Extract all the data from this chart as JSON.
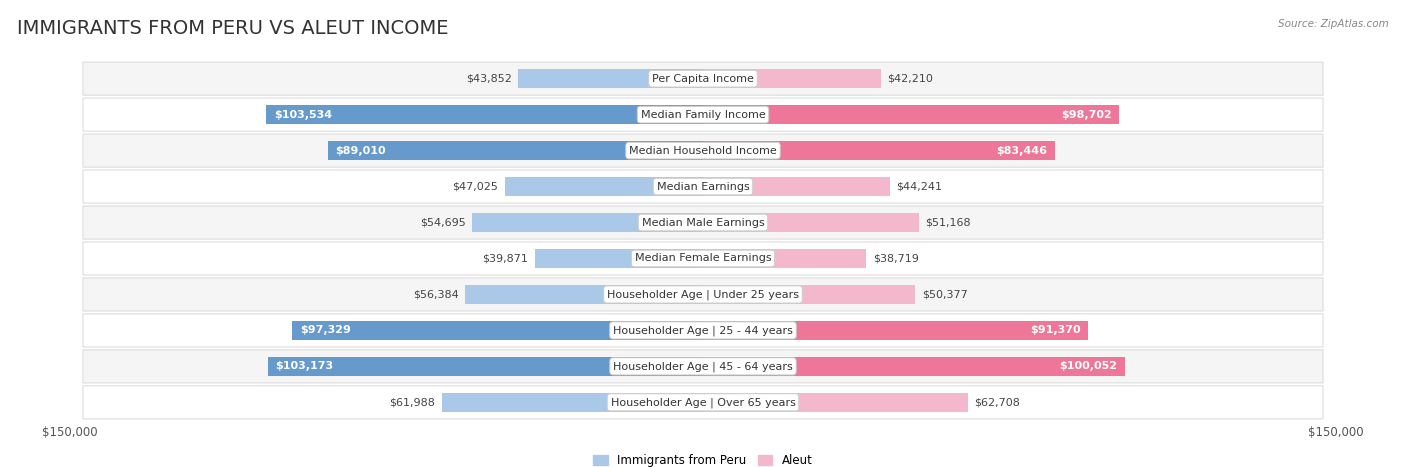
{
  "title": "IMMIGRANTS FROM PERU VS ALEUT INCOME",
  "source": "Source: ZipAtlas.com",
  "categories": [
    "Per Capita Income",
    "Median Family Income",
    "Median Household Income",
    "Median Earnings",
    "Median Male Earnings",
    "Median Female Earnings",
    "Householder Age | Under 25 years",
    "Householder Age | 25 - 44 years",
    "Householder Age | 45 - 64 years",
    "Householder Age | Over 65 years"
  ],
  "peru_values": [
    43852,
    103534,
    89010,
    47025,
    54695,
    39871,
    56384,
    97329,
    103173,
    61988
  ],
  "aleut_values": [
    42210,
    98702,
    83446,
    44241,
    51168,
    38719,
    50377,
    91370,
    100052,
    62708
  ],
  "peru_labels": [
    "$43,852",
    "$103,534",
    "$89,010",
    "$47,025",
    "$54,695",
    "$39,871",
    "$56,384",
    "$97,329",
    "$103,173",
    "$61,988"
  ],
  "aleut_labels": [
    "$42,210",
    "$98,702",
    "$83,446",
    "$44,241",
    "$51,168",
    "$38,719",
    "$50,377",
    "$91,370",
    "$100,052",
    "$62,708"
  ],
  "peru_color_light": "#aac8e8",
  "peru_color_dark": "#6699cc",
  "aleut_color_light": "#f4b8cc",
  "aleut_color_dark": "#ee7799",
  "inside_threshold": 75000,
  "max_value": 150000,
  "bar_height": 0.52,
  "row_bg_odd": "#f5f5f5",
  "row_bg_even": "#ffffff",
  "row_border_color": "#dddddd",
  "title_fontsize": 14,
  "label_fontsize": 8,
  "category_fontsize": 8,
  "axis_label_fontsize": 8.5,
  "legend_fontsize": 8.5,
  "background_color": "#ffffff",
  "peru_legend": "Immigrants from Peru",
  "aleut_legend": "Aleut",
  "label_color_outside": "#444444",
  "label_color_inside": "#ffffff"
}
